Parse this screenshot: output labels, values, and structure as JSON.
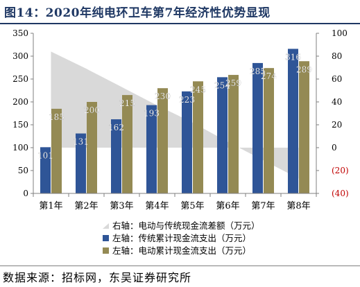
{
  "header": {
    "title": "图14：2020年纯电环卫车第7年经济性优势显现"
  },
  "footer": {
    "source": "数据来源：招标网，东吴证券研究所"
  },
  "colors": {
    "dark_blue": "#2f5597",
    "olive": "#948a54",
    "gray_area": "#d9d9d9",
    "title": "#1f3864",
    "negative": "#c00000"
  },
  "chart_data": {
    "type": "bar",
    "title": "",
    "categories": [
      "第1年",
      "第2年",
      "第3年",
      "第4年",
      "第5年",
      "第6年",
      "第7年",
      "第8年"
    ],
    "series": [
      {
        "name": "左轴：传统累计现金流支出（万元）",
        "axis": "left",
        "type": "bar",
        "color": "#2f5597",
        "values": [
          101,
          131,
          162,
          193,
          223,
          254,
          285,
          316
        ]
      },
      {
        "name": "左轴：电动累计现金流支出（万元）",
        "axis": "left",
        "type": "bar",
        "color": "#948a54",
        "values": [
          185,
          200,
          215,
          230,
          245,
          259,
          274,
          289
        ]
      },
      {
        "name": "右轴：电动与传统现金流差额（万元）",
        "axis": "right",
        "type": "area",
        "color": "#d9d9d9",
        "values": [
          84,
          69,
          53,
          37,
          22,
          5,
          -11,
          -27
        ]
      }
    ],
    "left_axis": {
      "ylim": [
        0,
        350
      ],
      "ticks": [
        "0",
        "50",
        "100",
        "150",
        "200",
        "250",
        "300",
        "350"
      ]
    },
    "right_axis": {
      "ylim": [
        -40,
        100
      ],
      "ticks": [
        "(40)",
        "(20)",
        "0",
        "20",
        "40",
        "60",
        "80",
        "100"
      ]
    },
    "legend_position": "bottom-center",
    "grid": false
  }
}
